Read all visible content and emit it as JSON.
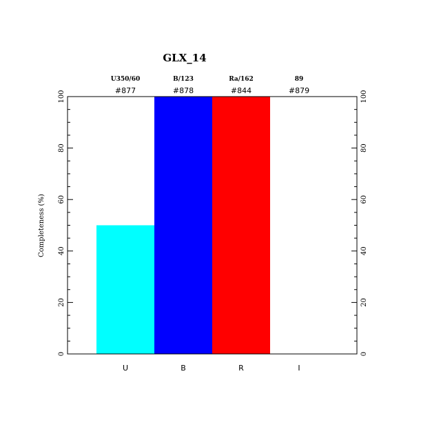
{
  "chart_data": {
    "type": "bar",
    "title": "GLX_14",
    "ylabel": "Completeness (%)",
    "xlabel": "",
    "ylim": [
      0,
      100
    ],
    "yticks": [
      0,
      20,
      40,
      60,
      80,
      100
    ],
    "categories": [
      "U",
      "B",
      "R",
      "I"
    ],
    "filter_names": [
      "U350/60",
      "B/123",
      "Ra/162",
      "89"
    ],
    "filter_ids": [
      "#877",
      "#878",
      "#844",
      "#879"
    ],
    "values": [
      50,
      100,
      100,
      0
    ],
    "colors": [
      "#00ffff",
      "#0000ff",
      "#ff0000",
      "#ffffff"
    ],
    "grid": false,
    "right_axis_labels": true
  }
}
